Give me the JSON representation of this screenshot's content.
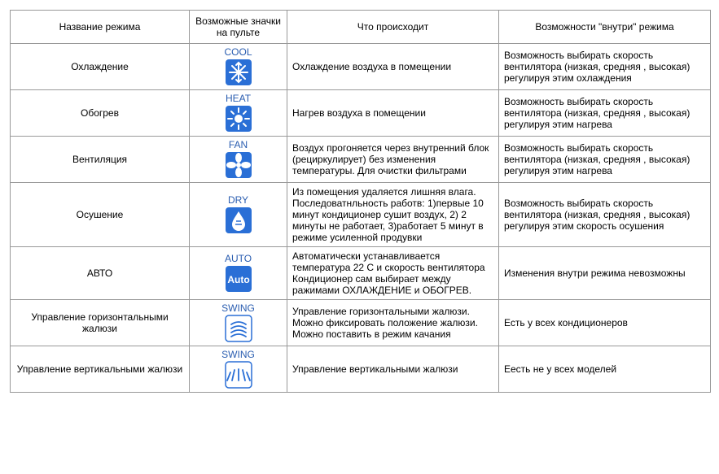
{
  "headers": {
    "mode": "Название режима",
    "icons": "Возможные значки на пульте",
    "what": "Что происходит",
    "inside": "Возможности \"внутри\" режима"
  },
  "icon_style": {
    "fill": "#2a6fd6",
    "stroke": "#ffffff",
    "label_color": "#2a5db0",
    "border_radius": 4
  },
  "rows": [
    {
      "mode": "Охлаждение",
      "icon_label": "COOL",
      "icon_kind": "snowflake",
      "what": "Охлаждение воздуха в помещении",
      "inside": "Возможность выбирать скорость вентилятора (низкая, средняя , высокая) регулируя этим охлаждения"
    },
    {
      "mode": "Обогрев",
      "icon_label": "HEAT",
      "icon_kind": "sun",
      "what": "Нагрев воздуха в помещении",
      "inside": "Возможность выбирать скорость вентилятора (низкая, средняя , высокая) регулируя этим нагрева"
    },
    {
      "mode": "Вентиляция",
      "icon_label": "FAN",
      "icon_kind": "fan",
      "what": "Воздух прогоняется через внутренний блок (рециркулирует)  без изменения температуры. Для очистки фильтрами",
      "inside": "Возможность выбирать скорость вентилятора (низкая, средняя , высокая) регулируя этим нагрева"
    },
    {
      "mode": "Осушение",
      "icon_label": "DRY",
      "icon_kind": "drop",
      "what": "Из помещения удаляется лишняя влага. Последоватнльность работв: 1)первые 10 минут кондиционер сушит воздух, 2) 2 минуты не работает, 3)работает 5 минут в режиме усиленной продувки",
      "inside": "Возможность выбирать скорость вентилятора (низкая, средняя , высокая) регулируя этим скорость осушения"
    },
    {
      "mode": "АВТО",
      "icon_label": "AUTO",
      "icon_kind": "auto",
      "what": "Автоматически устанавливается температура 22 С и скорость вентилятора Кондиционер сам выбирает между ражимами ОХЛАЖДЕНИЕ и ОБОГРЕВ.",
      "inside": "Изменения внутри режима невозможны"
    },
    {
      "mode": "Управление горизонтальными жалюзи",
      "icon_label": "SWING",
      "icon_kind": "swing-h",
      "what": "Управление горизонтальными жалюзи. Можно фиксировать положение жалюзи. Можно поставить в режим качания",
      "inside": "Есть у всех кондиционеров"
    },
    {
      "mode": "Управление вертикальными жалюзи",
      "icon_label": "SWING",
      "icon_kind": "swing-v",
      "what": "Управление вертикальными жалюзи",
      "inside": "Еесть не у всех моделей"
    }
  ]
}
